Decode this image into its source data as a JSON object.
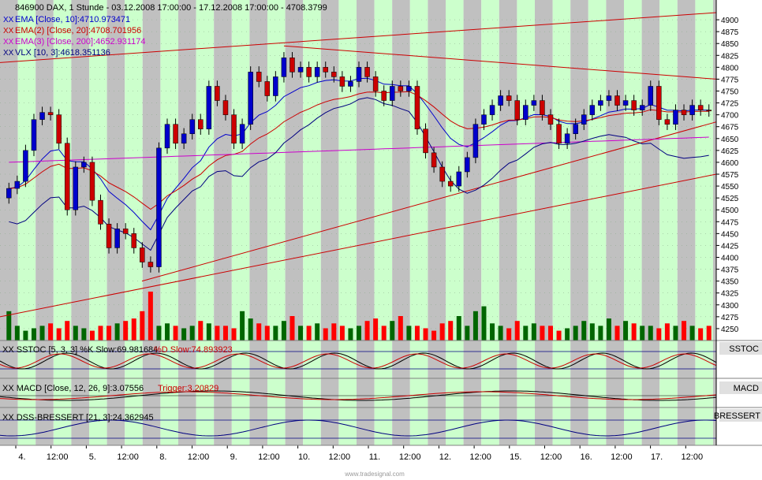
{
  "header": {
    "title": "846900 DAX, 1 Stunde - 03.12.2008 17:00:00 - 17.12.2008 17:00:00 - 4708.3799",
    "legend": [
      {
        "marker": "XX",
        "text": "EMA [Close, 10]:4710.973471",
        "color": "#0000cc"
      },
      {
        "marker": "XX",
        "text": "EMA(2) [Close, 20]:4708.701956",
        "color": "#cc0000"
      },
      {
        "marker": "XX",
        "text": "EMA(3) [Close, 200]:4652.931174",
        "color": "#cc00cc"
      },
      {
        "marker": "XX",
        "text": "VLX [10, 3]:4618.351136",
        "color": "#000080"
      }
    ]
  },
  "panes": {
    "sstoc": {
      "tag": "SSTOC",
      "legend_prefix": "XX SSTOC [5, 3, 3] %K Slow:69.981684",
      "legend_d": "%D Slow:74.893923"
    },
    "macd": {
      "tag": "MACD",
      "legend_prefix": "XX MACD [Close, 12, 26, 9]:3.07556",
      "legend_trigger": "Trigger:3.20829"
    },
    "dss": {
      "tag": "BRESSERT",
      "legend": "XX DSS-BRESSERT [21, 3]:24.362945"
    }
  },
  "x_axis": {
    "labels": [
      "4.",
      "12:00",
      "5.",
      "12:00",
      "8.",
      "12:00",
      "9.",
      "12:00",
      "10.",
      "12:00",
      "11.",
      "12:00",
      "12.",
      "12:00",
      "15.",
      "12:00",
      "16.",
      "12:00",
      "17.",
      "12:00"
    ]
  },
  "watermark": "www.tradesignal.com",
  "colors": {
    "up": "#0000cc",
    "down": "#cc0000",
    "vol_up": "#006600",
    "vol_down": "#ff0000",
    "green_band": "#ccffcc",
    "gray_band": "#c0c0c0"
  },
  "chart_data": {
    "type": "candlestick",
    "title": "846900 DAX, 1 Stunde - 03.12.2008 17:00:00 - 17.12.2008 17:00:00 - 4708.3799",
    "ylim": [
      4225,
      4925
    ],
    "y_ticks": [
      4250,
      4275,
      4300,
      4325,
      4350,
      4375,
      4400,
      4425,
      4450,
      4475,
      4500,
      4525,
      4550,
      4575,
      4600,
      4625,
      4650,
      4675,
      4700,
      4725,
      4750,
      4775,
      4800,
      4825,
      4850,
      4875,
      4900
    ],
    "x_labels": [
      "4.",
      "12:00",
      "5.",
      "12:00",
      "8.",
      "12:00",
      "9.",
      "12:00",
      "10.",
      "12:00",
      "11.",
      "12:00",
      "12.",
      "12:00",
      "15.",
      "12:00",
      "16.",
      "12:00",
      "17.",
      "12:00"
    ],
    "closes": [
      4545,
      4560,
      4625,
      4690,
      4705,
      4700,
      4640,
      4500,
      4590,
      4600,
      4520,
      4470,
      4420,
      4460,
      4450,
      4420,
      4390,
      4380,
      4630,
      4680,
      4640,
      4660,
      4690,
      4670,
      4760,
      4730,
      4700,
      4640,
      4680,
      4790,
      4770,
      4740,
      4780,
      4820,
      4790,
      4800,
      4780,
      4800,
      4790,
      4780,
      4760,
      4770,
      4800,
      4780,
      4750,
      4730,
      4760,
      4750,
      4760,
      4670,
      4620,
      4590,
      4560,
      4550,
      4580,
      4610,
      4680,
      4700,
      4720,
      4740,
      4730,
      4690,
      4720,
      4730,
      4700,
      4680,
      4640,
      4660,
      4680,
      4700,
      4720,
      4730,
      4740,
      4720,
      4730,
      4710,
      4720,
      4760,
      4690,
      4680,
      4710,
      4700,
      4720,
      4710,
      4708
    ],
    "volume": [
      60,
      30,
      20,
      25,
      30,
      35,
      25,
      40,
      30,
      25,
      20,
      30,
      30,
      35,
      40,
      45,
      60,
      100,
      30,
      35,
      30,
      25,
      30,
      40,
      35,
      30,
      30,
      25,
      60,
      45,
      35,
      30,
      30,
      40,
      50,
      30,
      30,
      35,
      25,
      35,
      30,
      25,
      30,
      40,
      45,
      30,
      40,
      50,
      30,
      30,
      25,
      20,
      35,
      40,
      50,
      30,
      60,
      70,
      35,
      30,
      25,
      40,
      30,
      35,
      30,
      30,
      20,
      25,
      30,
      40,
      35,
      30,
      45,
      30,
      40,
      35,
      30,
      30,
      25,
      35,
      30,
      40,
      30,
      25,
      30
    ],
    "series": [
      {
        "name": "EMA [Close, 10]",
        "last": 4710.973471
      },
      {
        "name": "EMA(2) [Close, 20]",
        "last": 4708.701956
      },
      {
        "name": "EMA(3) [Close, 200]",
        "last": 4652.931174
      },
      {
        "name": "VLX [10, 3]",
        "last": 4618.351136
      }
    ],
    "sstoc": {
      "k_slow": 69.981684,
      "d_slow": 74.893923
    },
    "macd": {
      "macd": 3.07556,
      "trigger": 3.20829
    },
    "dss_bressert": 24.362945
  }
}
